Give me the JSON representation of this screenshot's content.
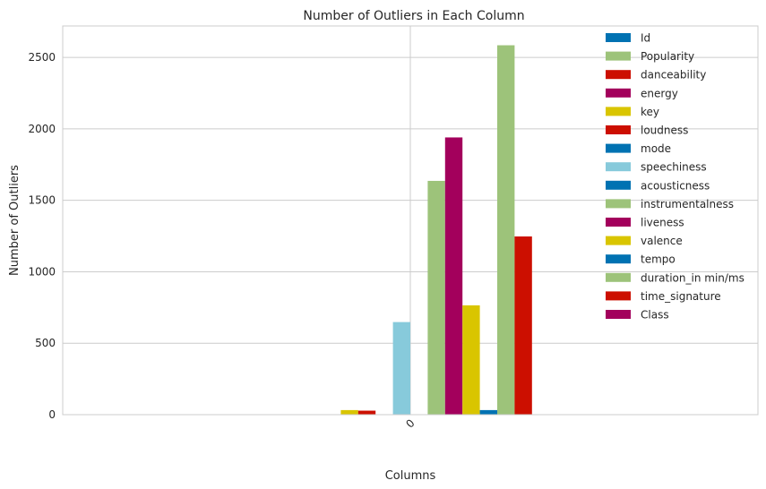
{
  "chart_data": {
    "type": "bar",
    "title": "Number of Outliers in Each Column",
    "xlabel": "Columns",
    "ylabel": "Number of Outliers",
    "categories": [
      "0"
    ],
    "ylim": [
      0,
      2720
    ],
    "yticks": [
      0,
      500,
      1000,
      1500,
      2000,
      2500
    ],
    "grid": true,
    "legend_position": "top-right",
    "series": [
      {
        "name": "Id",
        "values": [
          0
        ],
        "color": "#0072b2"
      },
      {
        "name": "Popularity",
        "values": [
          0
        ],
        "color": "#9dc37a"
      },
      {
        "name": "danceability",
        "values": [
          0
        ],
        "color": "#cc0f00"
      },
      {
        "name": "energy",
        "values": [
          0
        ],
        "color": "#a3005c"
      },
      {
        "name": "key",
        "values": [
          32
        ],
        "color": "#d9c500"
      },
      {
        "name": "loudness",
        "values": [
          28
        ],
        "color": "#cc0f00"
      },
      {
        "name": "mode",
        "values": [
          0
        ],
        "color": "#0072b2"
      },
      {
        "name": "speechiness",
        "values": [
          648
        ],
        "color": "#87cadb"
      },
      {
        "name": "acousticness",
        "values": [
          0
        ],
        "color": "#0072b2"
      },
      {
        "name": "instrumentalness",
        "values": [
          1636
        ],
        "color": "#9dc37a"
      },
      {
        "name": "liveness",
        "values": [
          1940
        ],
        "color": "#a3005c"
      },
      {
        "name": "valence",
        "values": [
          765
        ],
        "color": "#d9c500"
      },
      {
        "name": "tempo",
        "values": [
          32
        ],
        "color": "#0072b2"
      },
      {
        "name": "duration_in min/ms",
        "values": [
          2585
        ],
        "color": "#9dc37a"
      },
      {
        "name": "time_signature",
        "values": [
          1247
        ],
        "color": "#cc0f00"
      },
      {
        "name": "Class",
        "values": [
          0
        ],
        "color": "#a3005c"
      }
    ]
  }
}
